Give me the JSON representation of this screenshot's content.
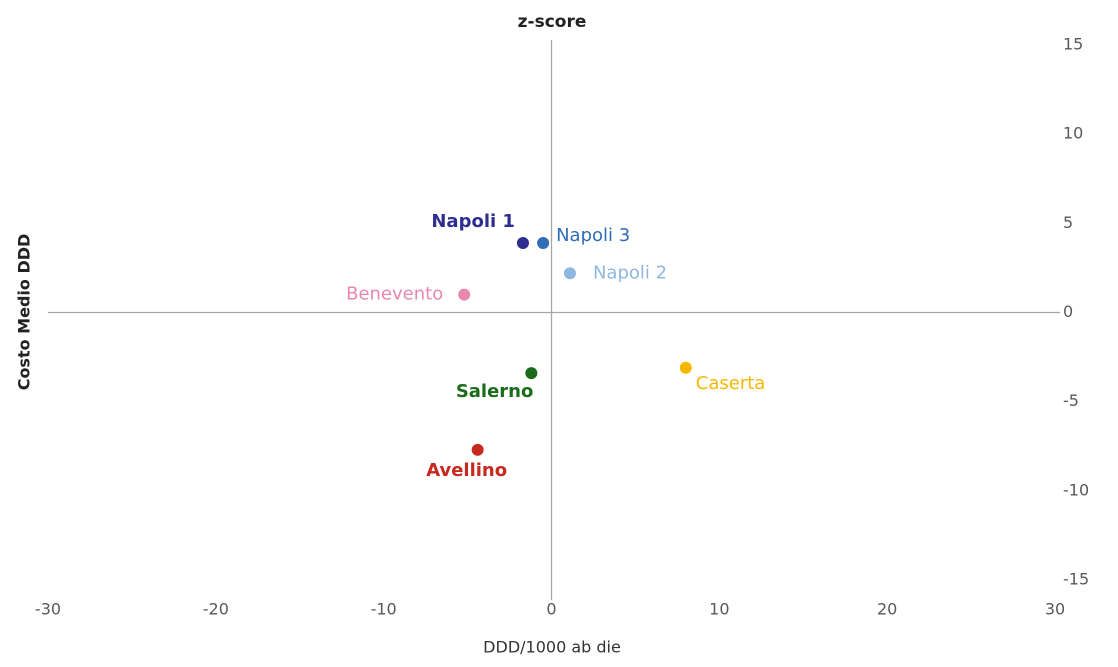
{
  "chart_data": {
    "type": "scatter",
    "title": "z-score",
    "x_label": "DDD/1000 ab die",
    "y_label": "Costo Medio DDD",
    "xlim": [
      -30,
      30
    ],
    "ylim": [
      -15,
      15
    ],
    "xticks": [
      -30,
      -20,
      -10,
      0,
      10,
      20,
      30
    ],
    "yticks": [
      -15,
      -10,
      -5,
      0,
      5,
      10,
      15
    ],
    "series": [
      {
        "name": "Napoli 1",
        "color": "#2e2e8f",
        "x": [
          -1.7
        ],
        "values": [
          3.9
        ]
      },
      {
        "name": "Napoli 3",
        "color": "#2f6db5",
        "x": [
          -0.5
        ],
        "values": [
          3.9
        ]
      },
      {
        "name": "Napoli 2",
        "color": "#8fb8e0",
        "x": [
          1.1
        ],
        "values": [
          2.2
        ]
      },
      {
        "name": "Benevento",
        "color": "#e888b0",
        "x": [
          -5.2
        ],
        "values": [
          1.0
        ]
      },
      {
        "name": "Salerno",
        "color": "#1a6b1a",
        "x": [
          -1.2
        ],
        "values": [
          -3.4
        ]
      },
      {
        "name": "Caserta",
        "color": "#f5b800",
        "x": [
          8.0
        ],
        "values": [
          -3.1
        ]
      },
      {
        "name": "Avellino",
        "color": "#c8281e",
        "x": [
          -4.4
        ],
        "values": [
          -7.7
        ]
      }
    ]
  }
}
